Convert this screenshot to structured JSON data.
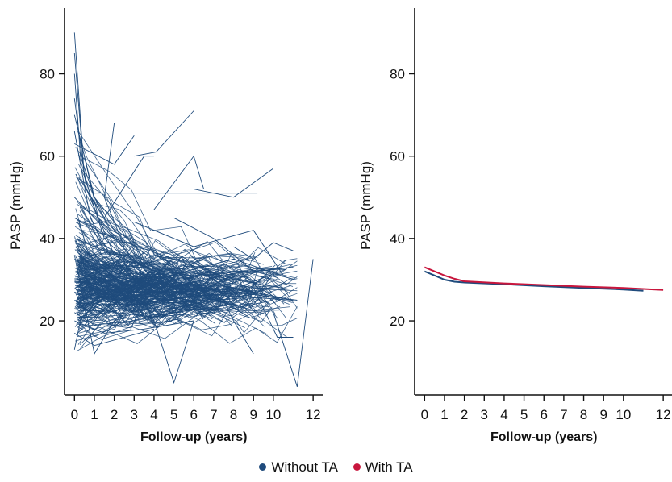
{
  "colors": {
    "without_ta": "#1f4b7c",
    "with_ta": "#c8163d",
    "axis": "#111111"
  },
  "legend": [
    {
      "label": "Without TA",
      "color": "#1f4b7c"
    },
    {
      "label": "With TA",
      "color": "#c8163d"
    }
  ],
  "chart_data": [
    {
      "type": "line",
      "description_tag": "spaghetti",
      "xlabel": "Follow-up (years)",
      "ylabel": "PASP (mmHg)",
      "xticks": [
        0,
        1,
        2,
        3,
        4,
        5,
        6,
        7,
        8,
        9,
        10,
        12
      ],
      "yticks": [
        20,
        40,
        60,
        80
      ],
      "xlim": [
        -0.5,
        12.4
      ],
      "ylim": [
        2,
        94
      ],
      "grid": false,
      "series": [
        {
          "values": [
            [
              0,
              90
            ],
            [
              0.4,
              62
            ],
            [
              1.2,
              45
            ],
            [
              2.5,
              38
            ]
          ]
        },
        {
          "values": [
            [
              0,
              85
            ],
            [
              0.5,
              55
            ],
            [
              1.5,
              40
            ],
            [
              3,
              33
            ]
          ]
        },
        {
          "values": [
            [
              0,
              80
            ],
            [
              0.3,
              60
            ],
            [
              1,
              50
            ],
            [
              2,
              42
            ]
          ]
        },
        {
          "values": [
            [
              0,
              74
            ],
            [
              0.6,
              52
            ],
            [
              2,
              36
            ],
            [
              4,
              30
            ]
          ]
        },
        {
          "values": [
            [
              0,
              70
            ],
            [
              1,
              50
            ],
            [
              3,
              38
            ],
            [
              5,
              32
            ]
          ]
        },
        {
          "values": [
            [
              0,
              66
            ],
            [
              0.8,
              45
            ],
            [
              2,
              34
            ]
          ]
        },
        {
          "values": [
            [
              0,
              63
            ],
            [
              2,
              58
            ],
            [
              3,
              65
            ]
          ]
        },
        {
          "values": [
            [
              0.2,
              55
            ],
            [
              1.5,
              45
            ],
            [
              3.5,
              60
            ],
            [
              4,
              60
            ]
          ]
        },
        {
          "values": [
            [
              3,
              60
            ],
            [
              4.1,
              61
            ],
            [
              6,
              71
            ]
          ]
        },
        {
          "values": [
            [
              4,
              47
            ],
            [
              6,
              60
            ],
            [
              6.5,
              52
            ]
          ]
        },
        {
          "values": [
            [
              1,
              51
            ],
            [
              4,
              51
            ],
            [
              9.2,
              51
            ]
          ]
        },
        {
          "values": [
            [
              6,
              52
            ],
            [
              8,
              50
            ],
            [
              10,
              57
            ]
          ]
        },
        {
          "values": [
            [
              0,
              45
            ],
            [
              2,
              40
            ],
            [
              5,
              35
            ],
            [
              8,
              30
            ],
            [
              10.4,
              28
            ]
          ]
        },
        {
          "values": [
            [
              0,
              40
            ],
            [
              3,
              34
            ],
            [
              6,
              30
            ],
            [
              9,
              27
            ],
            [
              11,
              25
            ]
          ]
        },
        {
          "values": [
            [
              0,
              35
            ],
            [
              2,
              31
            ],
            [
              5,
              28
            ],
            [
              8,
              27
            ],
            [
              11.2,
              25
            ]
          ]
        },
        {
          "values": [
            [
              0,
              30
            ],
            [
              2,
              28
            ],
            [
              5,
              27
            ],
            [
              8,
              26
            ],
            [
              11,
              25
            ]
          ]
        },
        {
          "values": [
            [
              0,
              27
            ],
            [
              1,
              25
            ],
            [
              3,
              24
            ],
            [
              6,
              26
            ],
            [
              9,
              27
            ]
          ]
        },
        {
          "values": [
            [
              0,
              25
            ],
            [
              2,
              22
            ],
            [
              4,
              21
            ],
            [
              7,
              22
            ],
            [
              10,
              25
            ]
          ]
        },
        {
          "values": [
            [
              0,
              22
            ],
            [
              1,
              19
            ],
            [
              3,
              20
            ],
            [
              5,
              22
            ],
            [
              8,
              24
            ]
          ]
        },
        {
          "values": [
            [
              0,
              20
            ],
            [
              1.5,
              17
            ],
            [
              3.5,
              18
            ],
            [
              6,
              20
            ]
          ]
        },
        {
          "values": [
            [
              0,
              17
            ],
            [
              1,
              14
            ],
            [
              2.5,
              16
            ],
            [
              4,
              18
            ]
          ]
        },
        {
          "values": [
            [
              0,
              13
            ],
            [
              0.3,
              20
            ],
            [
              1,
              24
            ],
            [
              2,
              26
            ]
          ]
        },
        {
          "values": [
            [
              0,
              36
            ],
            [
              1,
              12
            ],
            [
              2,
              20
            ],
            [
              3,
              25
            ]
          ]
        },
        {
          "values": [
            [
              3,
              30
            ],
            [
              4,
              20
            ],
            [
              5,
              5
            ],
            [
              6,
              20
            ]
          ]
        },
        {
          "values": [
            [
              7,
              30
            ],
            [
              8,
              20
            ],
            [
              9,
              12
            ]
          ]
        },
        {
          "values": [
            [
              10,
              22
            ],
            [
              11.2,
              4
            ],
            [
              12,
              35
            ]
          ]
        },
        {
          "values": [
            [
              9,
              28
            ],
            [
              10.2,
              16
            ],
            [
              11,
              16
            ]
          ]
        },
        {
          "values": [
            [
              2,
              68
            ],
            [
              1.5,
              50
            ],
            [
              2.5,
              38
            ]
          ]
        },
        {
          "values": [
            [
              8,
              38
            ],
            [
              9,
              35
            ],
            [
              10,
              39
            ],
            [
              11,
              37
            ]
          ]
        },
        {
          "values": [
            [
              0,
              50
            ],
            [
              4,
              30
            ],
            [
              8,
              35
            ],
            [
              11,
              30
            ]
          ]
        },
        {
          "values": [
            [
              5,
              45
            ],
            [
              7,
              40
            ],
            [
              9,
              32
            ],
            [
              11,
              33
            ]
          ]
        },
        {
          "values": [
            [
              3,
              44
            ],
            [
              6,
              38
            ],
            [
              9,
              42
            ],
            [
              10.5,
              31
            ]
          ]
        }
      ]
    },
    {
      "type": "line",
      "xlabel": "Follow-up (years)",
      "ylabel": "PASP (mmHg)",
      "xticks": [
        0,
        1,
        2,
        3,
        4,
        5,
        6,
        7,
        8,
        9,
        10,
        12
      ],
      "yticks": [
        20,
        40,
        60,
        80
      ],
      "xlim": [
        -0.5,
        12.4
      ],
      "ylim": [
        2,
        94
      ],
      "grid": false,
      "series": [
        {
          "name": "Without TA",
          "color": "#1f4b7c",
          "x": [
            0,
            0.5,
            1,
            1.5,
            2,
            4,
            6,
            8,
            10,
            11
          ],
          "y": [
            32,
            31,
            30,
            29.5,
            29.3,
            28.9,
            28.4,
            28,
            27.6,
            27.3
          ]
        },
        {
          "name": "With TA",
          "color": "#c8163d",
          "x": [
            0,
            0.5,
            1,
            1.5,
            2,
            4,
            6,
            8,
            10,
            12
          ],
          "y": [
            33,
            32,
            31,
            30.2,
            29.6,
            29.1,
            28.7,
            28.3,
            28,
            27.5
          ]
        }
      ]
    }
  ]
}
